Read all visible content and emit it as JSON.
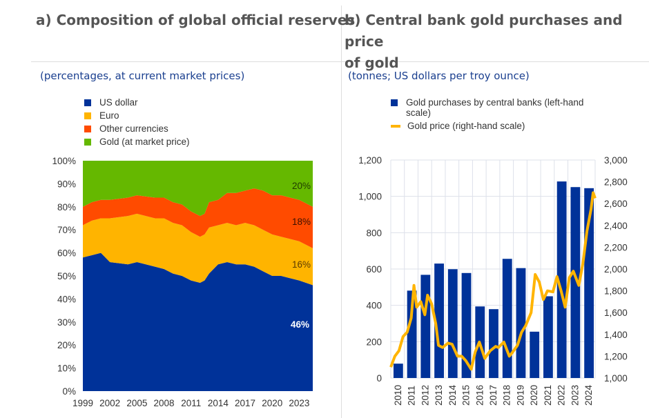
{
  "panel_a": {
    "title": "a) Composition of global official reserves",
    "subtitle": "(percentages, at current market prices)"
  },
  "panel_b": {
    "title_line1": "b) Central bank gold purchases and price",
    "title_line2": "of gold",
    "subtitle": "(tonnes; US dollars per troy ounce)"
  },
  "chart_data": [
    {
      "type": "area",
      "title": "Composition of global official reserves",
      "ylim": [
        0,
        100
      ],
      "yticks": [
        "0%",
        "10%",
        "20%",
        "30%",
        "40%",
        "50%",
        "60%",
        "70%",
        "80%",
        "90%",
        "100%"
      ],
      "xticks": [
        "1999",
        "2002",
        "2005",
        "2008",
        "2011",
        "2014",
        "2017",
        "2020",
        "2023"
      ],
      "x": [
        1999,
        2000,
        2001,
        2002,
        2004,
        2005,
        2007,
        2008,
        2009,
        2010,
        2011,
        2012,
        2012.5,
        2013,
        2014,
        2015,
        2016,
        2017,
        2018,
        2019,
        2020,
        2021,
        2022,
        2023,
        2024.5
      ],
      "series": [
        {
          "name": "US dollar",
          "color": "#003299",
          "values": [
            58,
            59,
            60,
            56,
            55,
            56,
            54,
            53,
            51,
            50,
            48,
            47,
            48,
            51,
            55,
            56,
            55,
            55,
            54,
            52,
            50,
            50,
            49,
            48,
            46
          ]
        },
        {
          "name": "Euro",
          "color": "#ffb400",
          "values": [
            14,
            15,
            15,
            19,
            21,
            21,
            21,
            22,
            22,
            22,
            21,
            20,
            20,
            20,
            17,
            17,
            17,
            18,
            18,
            18,
            18,
            17,
            17,
            17,
            16
          ]
        },
        {
          "name": "Other currencies",
          "color": "#ff4b00",
          "values": [
            8,
            8,
            8,
            8,
            8,
            8,
            9,
            9,
            9,
            9,
            9,
            9,
            9,
            11,
            11,
            13,
            14,
            14,
            16,
            17,
            17,
            18,
            18,
            18,
            18
          ]
        },
        {
          "name": "Gold (at market price)",
          "color": "#65b800",
          "values": [
            20,
            18,
            17,
            17,
            16,
            15,
            16,
            16,
            18,
            19,
            22,
            24,
            23,
            18,
            17,
            14,
            14,
            13,
            12,
            13,
            15,
            15,
            16,
            17,
            20
          ]
        }
      ],
      "labels": {
        "gold": "20%",
        "other": "18%",
        "euro": "16%",
        "usd": "46%"
      }
    },
    {
      "type": "bar+line",
      "ylim_left": [
        0,
        1200
      ],
      "ylim_right": [
        1000,
        3000
      ],
      "yticks_left": [
        "0",
        "200",
        "400",
        "600",
        "800",
        "1,000",
        "1,200"
      ],
      "yticks_right": [
        "1,000",
        "1,200",
        "1,400",
        "1,600",
        "1,800",
        "2,000",
        "2,200",
        "2,400",
        "2,600",
        "2,800",
        "3,000"
      ],
      "categories": [
        "2010",
        "2011",
        "2012",
        "2013",
        "2014",
        "2015",
        "2016",
        "2017",
        "2018",
        "2019",
        "2020",
        "2021",
        "2022",
        "2023",
        "2024"
      ],
      "series": [
        {
          "name": "Gold purchases by central banks (left-hand scale)",
          "color": "#003299",
          "values": [
            79,
            481,
            568,
            630,
            599,
            578,
            394,
            379,
            656,
            605,
            255,
            450,
            1082,
            1051,
            1045
          ]
        },
        {
          "name": "Gold price (right-hand scale)",
          "color": "#ffb400",
          "x": [
            2010,
            2010.3,
            2010.6,
            2010.9,
            2011.2,
            2011.5,
            2011.7,
            2011.9,
            2012.2,
            2012.5,
            2012.7,
            2013.0,
            2013.3,
            2013.5,
            2013.8,
            2014.2,
            2014.5,
            2014.9,
            2015.2,
            2015.5,
            2015.9,
            2016.2,
            2016.5,
            2016.9,
            2017.3,
            2017.7,
            2017.9,
            2018.3,
            2018.7,
            2018.9,
            2019.3,
            2019.6,
            2019.9,
            2020.3,
            2020.6,
            2020.9,
            2021.2,
            2021.5,
            2021.9,
            2022.2,
            2022.5,
            2022.8,
            2023.1,
            2023.4,
            2023.8,
            2024.1,
            2024.4,
            2024.7,
            2024.85,
            2025
          ],
          "values": [
            1100,
            1200,
            1250,
            1380,
            1420,
            1550,
            1850,
            1650,
            1700,
            1580,
            1760,
            1680,
            1500,
            1300,
            1280,
            1320,
            1310,
            1200,
            1200,
            1160,
            1080,
            1240,
            1330,
            1180,
            1250,
            1290,
            1280,
            1330,
            1200,
            1230,
            1300,
            1420,
            1480,
            1600,
            1950,
            1880,
            1720,
            1800,
            1790,
            1930,
            1800,
            1650,
            1920,
            1980,
            1850,
            2050,
            2350,
            2550,
            2700,
            2650
          ]
        }
      ]
    }
  ]
}
